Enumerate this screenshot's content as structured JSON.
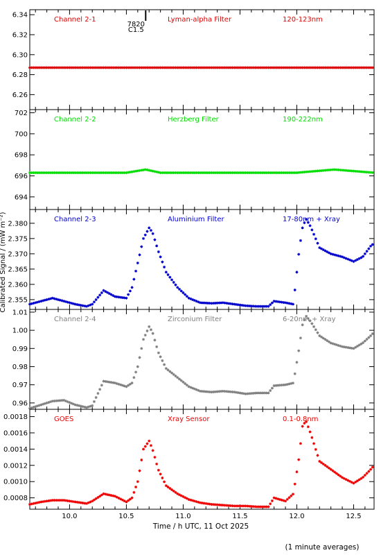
{
  "page": {
    "ylabel": "Calibrated Signal / (mW m⁻²)",
    "xlabel": "Time / h UTC, 11 Oct 2025",
    "footnote": "(1 minute averages)",
    "event_label_1": "7820",
    "event_label_2": "C1.5",
    "event_time": 10.67
  },
  "chart_data": [
    {
      "type": "scatter",
      "channel": "Channel 2-1",
      "filter": "Lyman-alpha Filter",
      "band": "120-123nm",
      "color": "#dd0000",
      "xlim": [
        9.65,
        12.68
      ],
      "ylim": [
        6.245,
        6.345
      ],
      "yticks": [
        6.26,
        6.28,
        6.3,
        6.32,
        6.34
      ],
      "ytick_labels": [
        "6.26",
        "6.28",
        "6.30",
        "6.32",
        "6.34"
      ],
      "xticks": [
        10.0,
        10.5,
        11.0,
        11.5,
        12.0,
        12.5
      ],
      "xtick_labels": [
        "10.0",
        "10.5",
        "11.0",
        "11.5",
        "12.0",
        "12.5"
      ],
      "x": [
        9.65,
        10.0,
        10.5,
        11.0,
        11.5,
        12.0,
        12.68
      ],
      "y": [
        6.287,
        6.287,
        6.287,
        6.287,
        6.287,
        6.287,
        6.287
      ]
    },
    {
      "type": "scatter",
      "channel": "Channel 2-2",
      "filter": "Herzberg Filter",
      "band": "190-222nm",
      "color": "#00dd00",
      "xlim": [
        9.65,
        12.68
      ],
      "ylim": [
        692.8,
        702.3
      ],
      "yticks": [
        694,
        696,
        698,
        700,
        702
      ],
      "ytick_labels": [
        "694",
        "696",
        "698",
        "700",
        "702"
      ],
      "xticks": [
        10.0,
        10.5,
        11.0,
        11.5,
        12.0,
        12.5
      ],
      "xtick_labels": [
        "10.0",
        "10.5",
        "11.0",
        "11.5",
        "12.0",
        "12.5"
      ],
      "x": [
        9.65,
        10.0,
        10.5,
        10.67,
        10.8,
        11.5,
        12.0,
        12.33,
        12.68
      ],
      "y": [
        696.3,
        696.3,
        696.3,
        696.6,
        696.3,
        696.3,
        696.3,
        696.6,
        696.3
      ]
    },
    {
      "type": "scatter",
      "channel": "Channel 2-3",
      "filter": "Aluminium Filter",
      "band": "17-80nm + Xray",
      "color": "#0000cc",
      "xlim": [
        9.65,
        12.68
      ],
      "ylim": [
        2.3518,
        2.3845
      ],
      "yticks": [
        2.355,
        2.36,
        2.365,
        2.37,
        2.375,
        2.38
      ],
      "ytick_labels": [
        "2.355",
        "2.360",
        "2.365",
        "2.370",
        "2.375",
        "2.380"
      ],
      "xticks": [
        10.0,
        10.5,
        11.0,
        11.5,
        12.0,
        12.5
      ],
      "xtick_labels": [
        "10.0",
        "10.5",
        "11.0",
        "11.5",
        "12.0",
        "12.5"
      ],
      "x": [
        9.65,
        9.75,
        9.85,
        9.95,
        10.05,
        10.15,
        10.2,
        10.3,
        10.4,
        10.5,
        10.55,
        10.6,
        10.65,
        10.7,
        10.73,
        10.78,
        10.85,
        10.95,
        11.05,
        11.15,
        11.25,
        11.35,
        11.45,
        11.55,
        11.65,
        11.75,
        11.8,
        11.9,
        11.97,
        12.02,
        12.05,
        12.08,
        12.12,
        12.2,
        12.3,
        12.4,
        12.5,
        12.58,
        12.65,
        12.68
      ],
      "y": [
        2.3535,
        2.3545,
        2.3555,
        2.3545,
        2.3535,
        2.3528,
        2.3535,
        2.358,
        2.356,
        2.3555,
        2.359,
        2.367,
        2.375,
        2.3785,
        2.377,
        2.371,
        2.364,
        2.359,
        2.3555,
        2.354,
        2.3538,
        2.354,
        2.3535,
        2.353,
        2.3528,
        2.3528,
        2.3545,
        2.354,
        2.3535,
        2.371,
        2.3785,
        2.3815,
        2.379,
        2.372,
        2.37,
        2.369,
        2.3675,
        2.369,
        2.3725,
        2.3735
      ]
    },
    {
      "type": "scatter",
      "channel": "Channel 2-4",
      "filter": "Zirconium Filter",
      "band": "6-20nm + Xray",
      "color": "#808080",
      "xlim": [
        9.65,
        12.68
      ],
      "ylim": [
        0.9565,
        1.0115
      ],
      "yticks": [
        0.96,
        0.97,
        0.98,
        0.99,
        1.0,
        1.01
      ],
      "ytick_labels": [
        "0.96",
        "0.97",
        "0.98",
        "0.99",
        "1.00",
        "1.01"
      ],
      "xticks": [
        10.0,
        10.5,
        11.0,
        11.5,
        12.0,
        12.5
      ],
      "xtick_labels": [
        "10.0",
        "10.5",
        "11.0",
        "11.5",
        "12.0",
        "12.5"
      ],
      "x": [
        9.65,
        9.75,
        9.85,
        9.95,
        10.05,
        10.15,
        10.2,
        10.3,
        10.4,
        10.5,
        10.55,
        10.6,
        10.65,
        10.7,
        10.73,
        10.78,
        10.85,
        10.95,
        11.05,
        11.15,
        11.25,
        11.35,
        11.45,
        11.55,
        11.65,
        11.75,
        11.8,
        11.9,
        11.97,
        12.02,
        12.05,
        12.08,
        12.12,
        12.2,
        12.3,
        12.4,
        12.5,
        12.58,
        12.65,
        12.68
      ],
      "y": [
        0.957,
        0.959,
        0.961,
        0.9615,
        0.959,
        0.9575,
        0.9585,
        0.972,
        0.971,
        0.969,
        0.971,
        0.98,
        0.995,
        1.002,
        0.999,
        0.988,
        0.979,
        0.974,
        0.969,
        0.9665,
        0.966,
        0.9665,
        0.966,
        0.965,
        0.9655,
        0.9655,
        0.9695,
        0.97,
        0.971,
        0.99,
        1.003,
        1.008,
        1.005,
        0.997,
        0.993,
        0.991,
        0.99,
        0.993,
        0.997,
        0.999
      ]
    },
    {
      "type": "scatter",
      "channel": "GOES",
      "filter": "Xray Sensor",
      "band": "0.1-0.8nm",
      "color": "#ee0000",
      "xlim": [
        9.65,
        12.68
      ],
      "ylim": [
        0.00066,
        0.00189
      ],
      "yticks": [
        0.0008,
        0.001,
        0.0012,
        0.0014,
        0.0016,
        0.0018
      ],
      "ytick_labels": [
        "0.0008",
        "0.0010",
        "0.0012",
        "0.0014",
        "0.0016",
        "0.0018"
      ],
      "xticks": [
        10.0,
        10.5,
        11.0,
        11.5,
        12.0,
        12.5
      ],
      "xtick_labels": [
        "10.0",
        "10.5",
        "11.0",
        "11.5",
        "12.0",
        "12.5"
      ],
      "x": [
        9.65,
        9.75,
        9.85,
        9.95,
        10.05,
        10.15,
        10.2,
        10.3,
        10.4,
        10.5,
        10.55,
        10.6,
        10.65,
        10.7,
        10.73,
        10.78,
        10.85,
        10.95,
        11.05,
        11.15,
        11.25,
        11.35,
        11.45,
        11.55,
        11.65,
        11.75,
        11.8,
        11.9,
        11.97,
        12.02,
        12.05,
        12.08,
        12.12,
        12.2,
        12.3,
        12.4,
        12.5,
        12.58,
        12.65,
        12.68
      ],
      "y": [
        0.00072,
        0.00075,
        0.00077,
        0.00077,
        0.00075,
        0.00073,
        0.00076,
        0.00085,
        0.00082,
        0.00075,
        0.0008,
        0.001,
        0.0014,
        0.0015,
        0.0014,
        0.00115,
        0.00095,
        0.00085,
        0.00078,
        0.00074,
        0.00072,
        0.00071,
        0.0007,
        0.0007,
        0.00069,
        0.00069,
        0.0008,
        0.00076,
        0.00085,
        0.0013,
        0.00168,
        0.00175,
        0.0016,
        0.00125,
        0.00115,
        0.00105,
        0.00098,
        0.00105,
        0.00115,
        0.0012
      ]
    }
  ]
}
